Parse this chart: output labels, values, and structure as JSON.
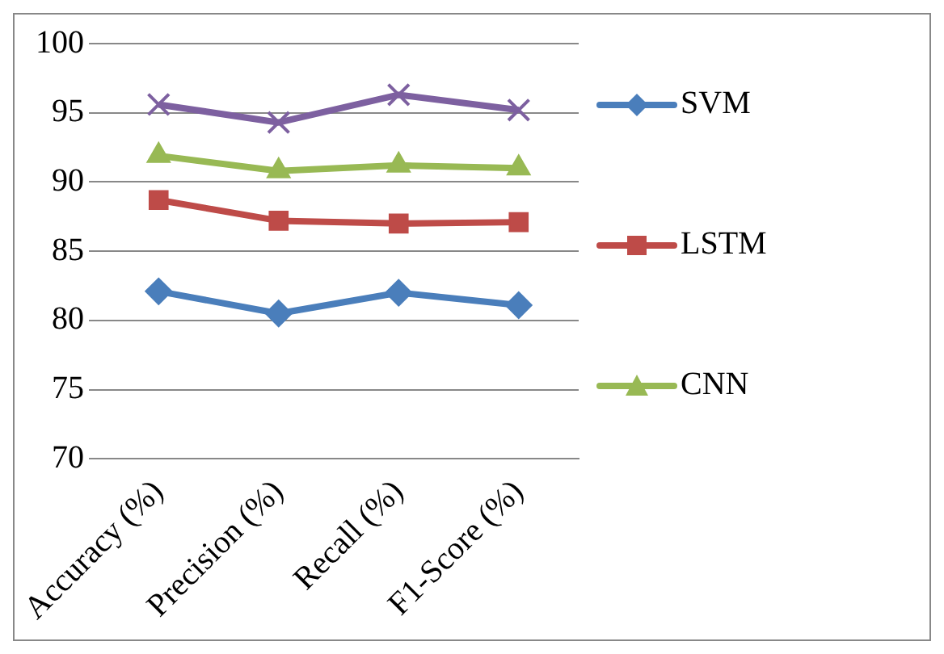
{
  "chart_data": {
    "type": "line",
    "categories": [
      "Accuracy (%)",
      "Precision (%)",
      "Recall (%)",
      "F1-Score (%)"
    ],
    "series": [
      {
        "name": "SVM",
        "color": "#4a7ebb",
        "marker": "diamond",
        "values": [
          82.1,
          80.5,
          82.0,
          81.1
        ]
      },
      {
        "name": "LSTM",
        "color": "#be4b48",
        "marker": "square",
        "values": [
          88.7,
          87.2,
          87.0,
          87.1
        ]
      },
      {
        "name": "CNN",
        "color": "#98b954",
        "marker": "triangle",
        "values": [
          91.9,
          90.8,
          91.2,
          91.0
        ]
      },
      {
        "color": "#7d60a0",
        "marker": "cross",
        "values": [
          95.6,
          94.3,
          96.3,
          95.2
        ]
      }
    ],
    "ylim": [
      70,
      100
    ],
    "yticks": [
      70,
      75,
      80,
      85,
      90,
      95,
      100
    ],
    "grid": "y",
    "legend": "right",
    "line_style": "solid"
  }
}
